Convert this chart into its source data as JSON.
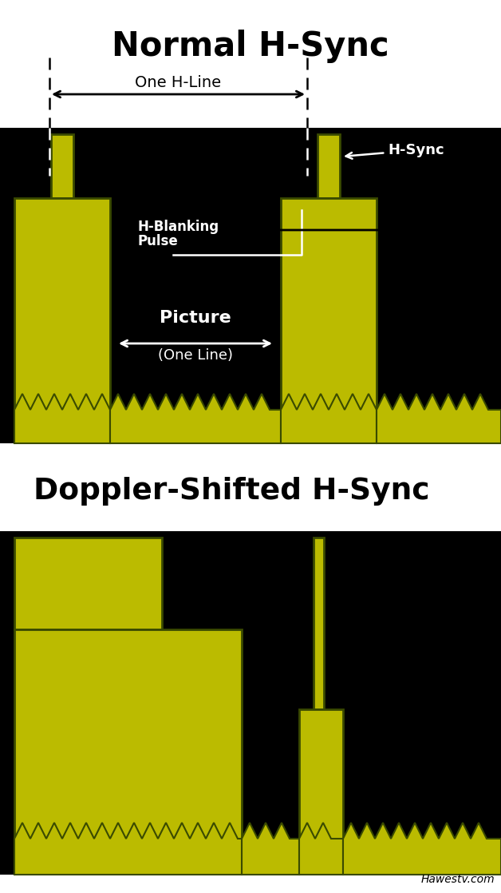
{
  "title1": "Normal H-Sync",
  "title2": "Doppler-Shifted H-Sync",
  "bg_color": "#000000",
  "white_bg": "#ffffff",
  "yellow_fill": "#BBBB00",
  "yellow_edge": "#3a4a00",
  "text_color_black": "#000000",
  "text_color_white": "#ffffff",
  "watermark": "Hawestv.com",
  "fig_width": 6.28,
  "fig_height": 11.18
}
